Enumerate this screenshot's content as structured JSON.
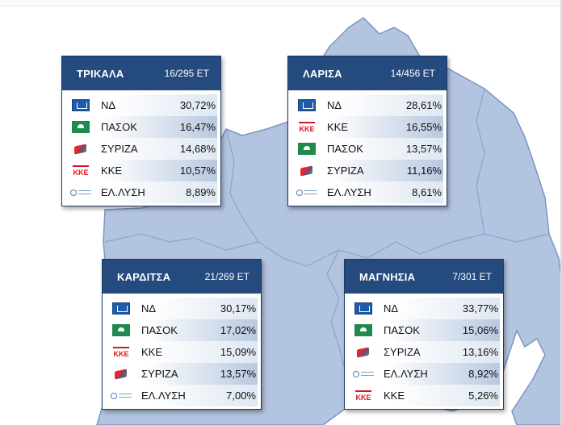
{
  "colors": {
    "header": "#244a7e",
    "map_fill": "#b3c4e0",
    "map_border": "#7b95c3",
    "row_alt": "#b9c9e0"
  },
  "cards": [
    {
      "id": "trikala",
      "name": "ΤΡΙΚΑΛΑ",
      "count": "16/295 ΕΤ",
      "rows": [
        {
          "logo": "nd",
          "party": "ΝΔ",
          "pct": "30,72%"
        },
        {
          "logo": "pasok",
          "party": "ΠΑΣΟΚ",
          "pct": "16,47%"
        },
        {
          "logo": "syriza",
          "party": "ΣΥΡΙΖΑ",
          "pct": "14,68%"
        },
        {
          "logo": "kke",
          "party": "ΚΚΕ",
          "pct": "10,57%"
        },
        {
          "logo": "elysi",
          "party": "ΕΛ.ΛΥΣΗ",
          "pct": "8,89%"
        }
      ]
    },
    {
      "id": "larisa",
      "name": "ΛΑΡΙΣΑ",
      "count": "14/456 ΕΤ",
      "rows": [
        {
          "logo": "nd",
          "party": "ΝΔ",
          "pct": "28,61%"
        },
        {
          "logo": "kke",
          "party": "ΚΚΕ",
          "pct": "16,55%"
        },
        {
          "logo": "pasok",
          "party": "ΠΑΣΟΚ",
          "pct": "13,57%"
        },
        {
          "logo": "syriza",
          "party": "ΣΥΡΙΖΑ",
          "pct": "11,16%"
        },
        {
          "logo": "elysi",
          "party": "ΕΛ.ΛΥΣΗ",
          "pct": "8,61%"
        }
      ]
    },
    {
      "id": "karditsa",
      "name": "ΚΑΡΔΙΤΣΑ",
      "count": "21/269 ΕΤ",
      "rows": [
        {
          "logo": "nd",
          "party": "ΝΔ",
          "pct": "30,17%"
        },
        {
          "logo": "pasok",
          "party": "ΠΑΣΟΚ",
          "pct": "17,02%"
        },
        {
          "logo": "kke",
          "party": "ΚΚΕ",
          "pct": "15,09%"
        },
        {
          "logo": "syriza",
          "party": "ΣΥΡΙΖΑ",
          "pct": "13,57%"
        },
        {
          "logo": "elysi",
          "party": "ΕΛ.ΛΥΣΗ",
          "pct": "7,00%"
        }
      ]
    },
    {
      "id": "magnisia",
      "name": "ΜΑΓΝΗΣΙΑ",
      "count": "7/301 ΕΤ",
      "rows": [
        {
          "logo": "nd",
          "party": "ΝΔ",
          "pct": "33,77%"
        },
        {
          "logo": "pasok",
          "party": "ΠΑΣΟΚ",
          "pct": "15,06%"
        },
        {
          "logo": "syriza",
          "party": "ΣΥΡΙΖΑ",
          "pct": "13,16%"
        },
        {
          "logo": "elysi",
          "party": "ΕΛ.ΛΥΣΗ",
          "pct": "8,92%"
        },
        {
          "logo": "kke",
          "party": "ΚΚΕ",
          "pct": "5,26%"
        }
      ]
    }
  ]
}
